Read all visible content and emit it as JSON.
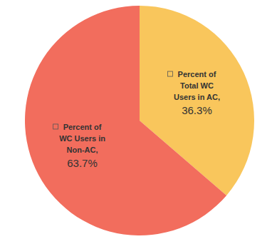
{
  "chart_data": {
    "type": "pie",
    "categories": [
      "Percent of Total WC Users in AC,",
      "Percent of WC Users in Non-AC,"
    ],
    "values": [
      36.3,
      63.7
    ],
    "value_labels": [
      "36.3%",
      "63.7%"
    ],
    "colors": [
      "#f9c65c",
      "#f26d5d"
    ],
    "data_labels": true
  }
}
